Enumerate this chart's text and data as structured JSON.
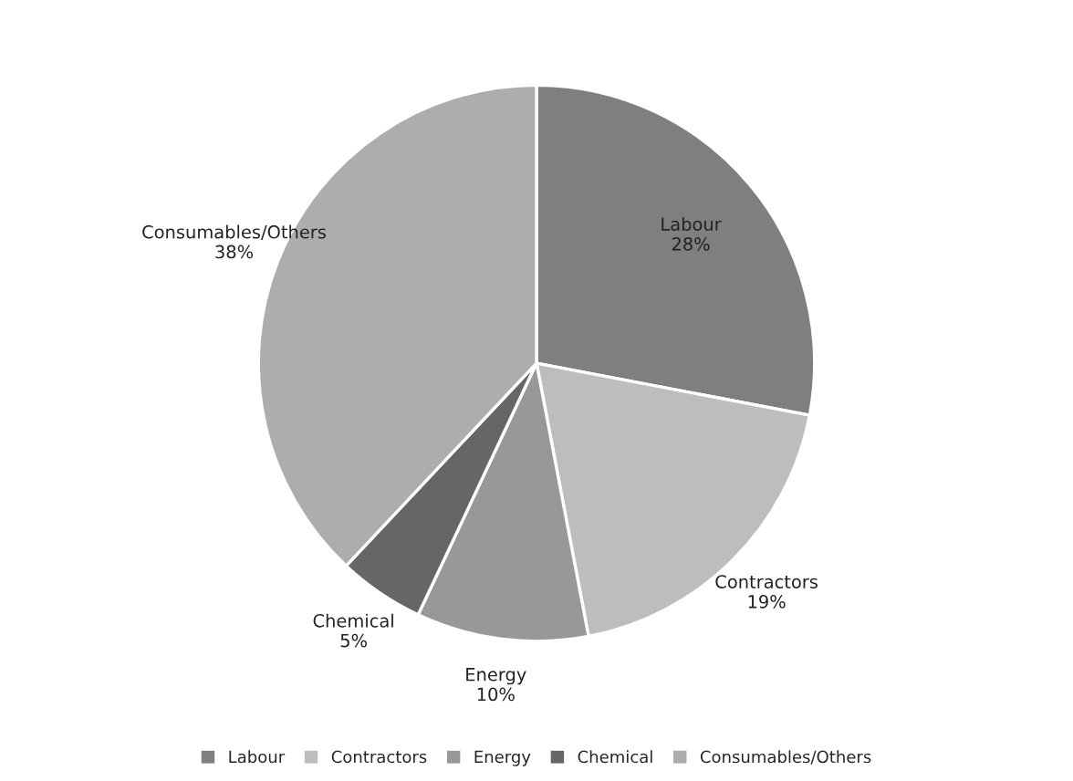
{
  "chart_data": {
    "type": "pie",
    "categories": [
      "Labour",
      "Contractors",
      "Energy",
      "Chemical",
      "Consumables/Others"
    ],
    "values": [
      28,
      19,
      10,
      5,
      38
    ],
    "colors": [
      "#7f7f81",
      "#bdbdbf",
      "#98989a",
      "#666668",
      "#adadaf"
    ],
    "value_labels": [
      "28%",
      "19%",
      "10%",
      "5%",
      "38%"
    ],
    "legend": "bottom"
  }
}
